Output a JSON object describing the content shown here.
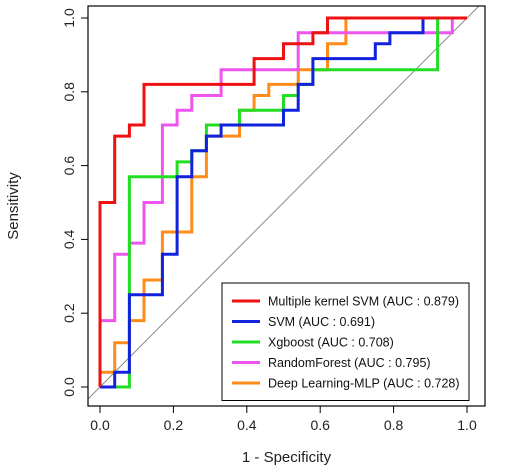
{
  "chart_data": {
    "type": "line",
    "xlabel": "1 - Specificity",
    "ylabel": "Sensitivity",
    "xlim": [
      0,
      1
    ],
    "ylim": [
      0,
      1
    ],
    "x_ticks": [
      "0.0",
      "0.2",
      "0.4",
      "0.6",
      "0.8",
      "1.0"
    ],
    "y_ticks": [
      "0.0",
      "0.2",
      "0.4",
      "0.6",
      "0.8",
      "1.0"
    ],
    "grid": false,
    "reference_line": {
      "from": [
        0,
        0
      ],
      "to": [
        1,
        1
      ],
      "color": "#888888"
    },
    "legend": {
      "placement": "bottom-right"
    },
    "series": [
      {
        "name": "Multiple kernel SVM",
        "legend_label": "Multiple kernel SVM  (AUC : 0.879)",
        "color": "#ee1111",
        "x": [
          0.0,
          0.0,
          0.0,
          0.04,
          0.04,
          0.08,
          0.08,
          0.12,
          0.12,
          0.42,
          0.42,
          0.5,
          0.5,
          0.58,
          0.58,
          0.62,
          0.62,
          0.79,
          0.79,
          1.0
        ],
        "y": [
          0.0,
          0.04,
          0.5,
          0.5,
          0.68,
          0.68,
          0.71,
          0.71,
          0.82,
          0.82,
          0.89,
          0.89,
          0.93,
          0.93,
          0.96,
          0.96,
          1.0,
          1.0,
          1.0,
          1.0
        ]
      },
      {
        "name": "SVM",
        "legend_label": "SVM  (AUC : 0.691)",
        "color": "#1122dd",
        "x": [
          0.0,
          0.04,
          0.04,
          0.08,
          0.08,
          0.17,
          0.17,
          0.21,
          0.21,
          0.25,
          0.25,
          0.29,
          0.29,
          0.33,
          0.33,
          0.38,
          0.38,
          0.5,
          0.5,
          0.54,
          0.54,
          0.58,
          0.58,
          0.75,
          0.75,
          0.79,
          0.79,
          0.88,
          0.88,
          1.0
        ],
        "y": [
          0.0,
          0.0,
          0.04,
          0.04,
          0.25,
          0.25,
          0.36,
          0.36,
          0.57,
          0.57,
          0.64,
          0.64,
          0.68,
          0.68,
          0.71,
          0.71,
          0.71,
          0.71,
          0.75,
          0.75,
          0.82,
          0.82,
          0.89,
          0.89,
          0.93,
          0.93,
          0.96,
          0.96,
          1.0,
          1.0
        ]
      },
      {
        "name": "Xgboost",
        "legend_label": "Xgboost  (AUC : 0.708)",
        "color": "#22dd22",
        "x": [
          0.0,
          0.08,
          0.08,
          0.21,
          0.21,
          0.25,
          0.25,
          0.29,
          0.29,
          0.38,
          0.38,
          0.5,
          0.5,
          0.54,
          0.54,
          0.58,
          0.58,
          0.67,
          0.67,
          0.92,
          0.92,
          1.0
        ],
        "y": [
          0.0,
          0.0,
          0.57,
          0.57,
          0.61,
          0.61,
          0.64,
          0.64,
          0.71,
          0.71,
          0.75,
          0.75,
          0.79,
          0.79,
          0.82,
          0.82,
          0.86,
          0.86,
          0.86,
          0.86,
          1.0,
          1.0
        ]
      },
      {
        "name": "RandomForest",
        "legend_label": "RandomForest  (AUC : 0.795)",
        "color": "#ee55ee",
        "x": [
          0.0,
          0.0,
          0.04,
          0.04,
          0.08,
          0.08,
          0.12,
          0.12,
          0.17,
          0.17,
          0.21,
          0.21,
          0.25,
          0.25,
          0.33,
          0.33,
          0.54,
          0.54,
          0.67,
          0.67,
          0.96,
          0.96,
          1.0
        ],
        "y": [
          0.0,
          0.18,
          0.18,
          0.36,
          0.36,
          0.39,
          0.39,
          0.5,
          0.5,
          0.71,
          0.71,
          0.75,
          0.75,
          0.79,
          0.79,
          0.86,
          0.86,
          0.96,
          0.96,
          0.96,
          0.96,
          1.0,
          1.0
        ]
      },
      {
        "name": "Deep Learning-MLP",
        "legend_label": "Deep Learning-MLP  (AUC : 0.728)",
        "color": "#ff8c1a",
        "x": [
          0.0,
          0.0,
          0.04,
          0.04,
          0.08,
          0.08,
          0.12,
          0.12,
          0.17,
          0.17,
          0.25,
          0.25,
          0.29,
          0.29,
          0.38,
          0.38,
          0.42,
          0.42,
          0.46,
          0.46,
          0.54,
          0.54,
          0.62,
          0.62,
          0.67,
          0.67,
          1.0
        ],
        "y": [
          0.0,
          0.04,
          0.04,
          0.12,
          0.12,
          0.18,
          0.18,
          0.29,
          0.29,
          0.42,
          0.42,
          0.57,
          0.57,
          0.68,
          0.68,
          0.75,
          0.75,
          0.79,
          0.79,
          0.82,
          0.82,
          0.86,
          0.86,
          0.93,
          0.93,
          1.0,
          1.0
        ]
      }
    ]
  }
}
